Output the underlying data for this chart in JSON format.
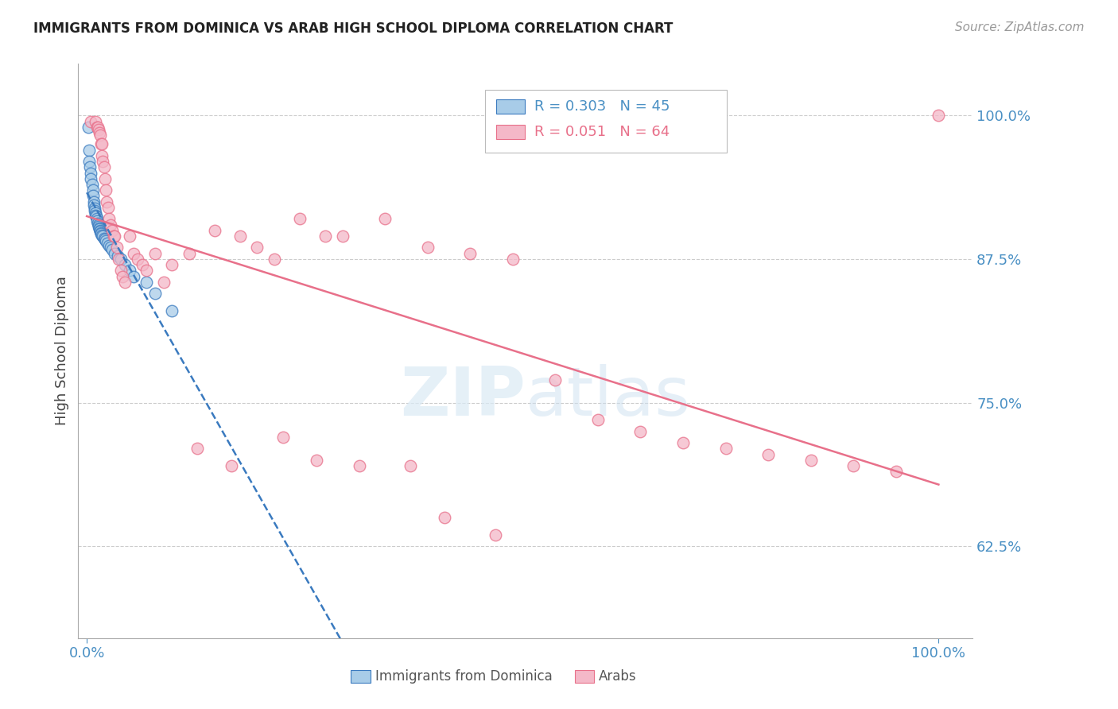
{
  "title": "IMMIGRANTS FROM DOMINICA VS ARAB HIGH SCHOOL DIPLOMA CORRELATION CHART",
  "source": "Source: ZipAtlas.com",
  "ylabel": "High School Diploma",
  "yticks": [
    0.625,
    0.75,
    0.875,
    1.0
  ],
  "ytick_labels": [
    "62.5%",
    "75.0%",
    "87.5%",
    "100.0%"
  ],
  "xlim": [
    -0.01,
    1.04
  ],
  "ylim": [
    0.545,
    1.045
  ],
  "color_blue": "#a8cce8",
  "color_pink": "#f4b8c8",
  "color_blue_dark": "#3a7abf",
  "color_pink_dark": "#e8708a",
  "color_text_blue": "#4a90c4",
  "color_grid": "#cccccc",
  "watermark_color": "#daeaf5",
  "blue_x": [
    0.002,
    0.003,
    0.003,
    0.004,
    0.005,
    0.005,
    0.006,
    0.007,
    0.007,
    0.008,
    0.008,
    0.009,
    0.009,
    0.01,
    0.01,
    0.011,
    0.012,
    0.012,
    0.013,
    0.014,
    0.014,
    0.015,
    0.015,
    0.016,
    0.016,
    0.017,
    0.017,
    0.018,
    0.019,
    0.02,
    0.021,
    0.022,
    0.024,
    0.026,
    0.028,
    0.03,
    0.033,
    0.036,
    0.04,
    0.045,
    0.05,
    0.055,
    0.07,
    0.08,
    0.1
  ],
  "blue_y": [
    0.99,
    0.97,
    0.96,
    0.955,
    0.95,
    0.945,
    0.94,
    0.935,
    0.93,
    0.925,
    0.922,
    0.919,
    0.917,
    0.915,
    0.913,
    0.912,
    0.91,
    0.908,
    0.906,
    0.905,
    0.903,
    0.902,
    0.901,
    0.9,
    0.899,
    0.898,
    0.897,
    0.896,
    0.895,
    0.893,
    0.892,
    0.891,
    0.889,
    0.887,
    0.885,
    0.883,
    0.88,
    0.878,
    0.875,
    0.87,
    0.865,
    0.86,
    0.855,
    0.845,
    0.83
  ],
  "pink_x": [
    0.005,
    0.01,
    0.012,
    0.013,
    0.014,
    0.015,
    0.016,
    0.017,
    0.018,
    0.018,
    0.019,
    0.02,
    0.021,
    0.022,
    0.023,
    0.025,
    0.026,
    0.028,
    0.03,
    0.032,
    0.033,
    0.035,
    0.037,
    0.04,
    0.042,
    0.045,
    0.05,
    0.055,
    0.06,
    0.065,
    0.07,
    0.08,
    0.09,
    0.1,
    0.12,
    0.15,
    0.18,
    0.2,
    0.22,
    0.25,
    0.28,
    0.3,
    0.35,
    0.4,
    0.45,
    0.5,
    0.55,
    0.6,
    0.65,
    0.7,
    0.75,
    0.8,
    0.85,
    0.9,
    0.95,
    1.0,
    0.13,
    0.17,
    0.23,
    0.27,
    0.32,
    0.38,
    0.42,
    0.48
  ],
  "pink_y": [
    0.995,
    0.995,
    0.99,
    0.99,
    0.988,
    0.985,
    0.983,
    0.975,
    0.975,
    0.965,
    0.96,
    0.955,
    0.945,
    0.935,
    0.925,
    0.92,
    0.91,
    0.905,
    0.9,
    0.895,
    0.895,
    0.885,
    0.875,
    0.865,
    0.86,
    0.855,
    0.895,
    0.88,
    0.875,
    0.87,
    0.865,
    0.88,
    0.855,
    0.87,
    0.88,
    0.9,
    0.895,
    0.885,
    0.875,
    0.91,
    0.895,
    0.895,
    0.91,
    0.885,
    0.88,
    0.875,
    0.77,
    0.735,
    0.725,
    0.715,
    0.71,
    0.705,
    0.7,
    0.695,
    0.69,
    1.0,
    0.71,
    0.695,
    0.72,
    0.7,
    0.695,
    0.695,
    0.65,
    0.635
  ]
}
